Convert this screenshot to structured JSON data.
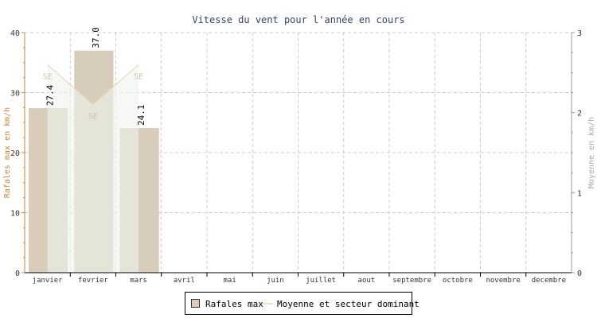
{
  "chart_data": {
    "type": "bar",
    "title": "Vitesse du vent pour l'année en cours",
    "categories": [
      "janvier",
      "fevrier",
      "mars",
      "avril",
      "mai",
      "juin",
      "juillet",
      "aout",
      "septembre",
      "octobre",
      "novembre",
      "decembre"
    ],
    "ylabel": "Rafales max en km/h",
    "y2label": "Moyenne en km/h",
    "ylim": [
      0,
      40
    ],
    "y2lim": [
      0,
      3
    ],
    "yticks": [
      "0",
      "10",
      "20",
      "30",
      "40"
    ],
    "y2ticks": [
      "0",
      "1",
      "2",
      "3"
    ],
    "grid": true,
    "legend_position": "bottom",
    "series": [
      {
        "name": "Rafales max",
        "type": "bar",
        "axis": "left",
        "color": "#d8ccbb",
        "values": [
          27.4,
          37.0,
          24.1,
          null,
          null,
          null,
          null,
          null,
          null,
          null,
          null,
          null
        ],
        "labels": [
          "27.4",
          "37.0",
          "24.1"
        ]
      },
      {
        "name": "Moyenne et secteur dominant",
        "type": "area",
        "axis": "right",
        "color": "#e8d9bf",
        "fill": "#eef4ec",
        "values": [
          2.6,
          2.1,
          2.6,
          null,
          null,
          null,
          null,
          null,
          null,
          null,
          null,
          null
        ],
        "sectors": [
          "SE",
          "SE",
          "SE"
        ]
      }
    ]
  },
  "colors": {
    "left_axis": "#c08840",
    "text": "#333333",
    "title": "#334466",
    "grid": "#cccccc",
    "right_label": "#aaaaaa"
  }
}
